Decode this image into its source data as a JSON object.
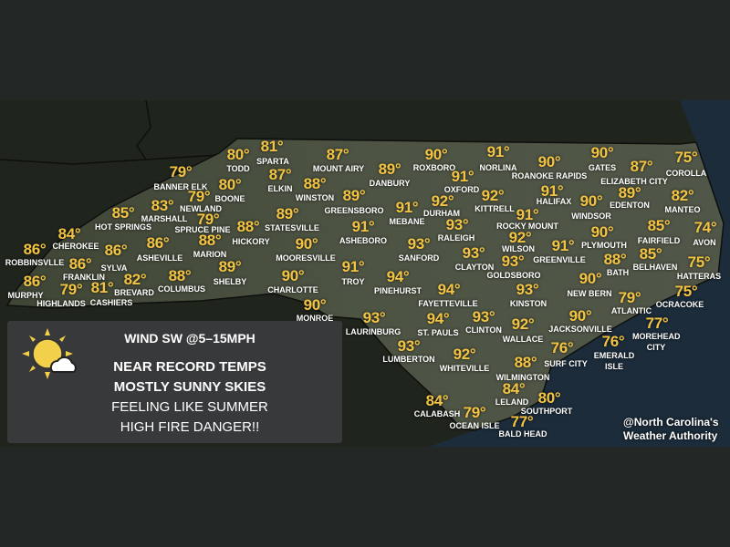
{
  "info_box": {
    "icon": "partly-sunny-icon",
    "wind": "WIND SW @5–15MPH",
    "lines": [
      "NEAR RECORD TEMPS",
      "MOSTLY SUNNY SKIES",
      "FEELING LIKE SUMMER",
      "HIGH FIRE DANGER!!"
    ]
  },
  "credit": [
    "@North Carolina's",
    "Weather Authority"
  ],
  "colors": {
    "temp": "#f3c443",
    "label": "#ffffff",
    "ocean": "#1c2c3b",
    "land": "#4a5141"
  },
  "cities": [
    {
      "name": "TODD",
      "temp": "80°"
    },
    {
      "name": "SPARTA",
      "temp": "81°"
    },
    {
      "name": "BANNER ELK",
      "temp": "79°"
    },
    {
      "name": "BOONE",
      "temp": "80°"
    },
    {
      "name": "NEWLAND",
      "temp": "79°"
    },
    {
      "name": "MARSHALL",
      "temp": "83°"
    },
    {
      "name": "HOT SPRINGS",
      "temp": "85°"
    },
    {
      "name": "SPRUCE PINE",
      "temp": "79°"
    },
    {
      "name": "HICKORY",
      "temp": "88°"
    },
    {
      "name": "CHEROKEE",
      "temp": "84°"
    },
    {
      "name": "ASHEVILLE",
      "temp": "86°"
    },
    {
      "name": "MARION",
      "temp": "88°"
    },
    {
      "name": "ROBBINSVLLE",
      "temp": "86°"
    },
    {
      "name": "SYLVA",
      "temp": "86°"
    },
    {
      "name": "FRANKLIN",
      "temp": "86°"
    },
    {
      "name": "SHELBY",
      "temp": "89°"
    },
    {
      "name": "COLUMBUS",
      "temp": "88°"
    },
    {
      "name": "BREVARD",
      "temp": "82°"
    },
    {
      "name": "MURPHY",
      "temp": "86°"
    },
    {
      "name": "HIGHLANDS",
      "temp": "79°"
    },
    {
      "name": "CASHIERS",
      "temp": "81°"
    },
    {
      "name": "MOUNT AIRY",
      "temp": "87°"
    },
    {
      "name": "ELKIN",
      "temp": "87°"
    },
    {
      "name": "WINSTON",
      "temp": "88°"
    },
    {
      "name": "DANBURY",
      "temp": "89°"
    },
    {
      "name": "ROXBORO",
      "temp": "90°"
    },
    {
      "name": "OXFORD",
      "temp": "91°"
    },
    {
      "name": "GREENSBORO",
      "temp": "89°"
    },
    {
      "name": "MEBANE",
      "temp": "91°"
    },
    {
      "name": "DURHAM",
      "temp": "92°"
    },
    {
      "name": "STATESVILLE",
      "temp": "89°"
    },
    {
      "name": "ASHEBORO",
      "temp": "91°"
    },
    {
      "name": "RALEIGH",
      "temp": "93°"
    },
    {
      "name": "MOORESVILLE",
      "temp": "90°"
    },
    {
      "name": "SANFORD",
      "temp": "93°"
    },
    {
      "name": "CLAYTON",
      "temp": "93°"
    },
    {
      "name": "TROY",
      "temp": "91°"
    },
    {
      "name": "CHARLOTTE",
      "temp": "90°"
    },
    {
      "name": "PINEHURST",
      "temp": "94°"
    },
    {
      "name": "FAYETTEVILLE",
      "temp": "94°"
    },
    {
      "name": "MONROE",
      "temp": "90°"
    },
    {
      "name": "LAURINBURG",
      "temp": "93°"
    },
    {
      "name": "ST. PAULS",
      "temp": "94°"
    },
    {
      "name": "LUMBERTON",
      "temp": "93°"
    },
    {
      "name": "WHITEVILLE",
      "temp": "92°"
    },
    {
      "name": "CALABASH",
      "temp": "84°"
    },
    {
      "name": "OCEAN ISLE",
      "temp": "79°"
    },
    {
      "name": "CLINTON",
      "temp": "93°"
    },
    {
      "name": "WALLACE",
      "temp": "92°"
    },
    {
      "name": "GOLDSBORO",
      "temp": "93°"
    },
    {
      "name": "KINSTON",
      "temp": "93°"
    },
    {
      "name": "WILSON",
      "temp": "92°"
    },
    {
      "name": "ROCKY MOUNT",
      "temp": "91°"
    },
    {
      "name": "KITTRELL",
      "temp": "92°"
    },
    {
      "name": "NORLINA",
      "temp": "91°"
    },
    {
      "name": "ROANOKE RAPIDS",
      "temp": "90°"
    },
    {
      "name": "GATES",
      "temp": "90°"
    },
    {
      "name": "ELIZABETH CITY",
      "temp": "87°"
    },
    {
      "name": "COROLLA",
      "temp": "75°"
    },
    {
      "name": "HALIFAX",
      "temp": "91°"
    },
    {
      "name": "EDENTON",
      "temp": "89°"
    },
    {
      "name": "WINDSOR",
      "temp": "90°"
    },
    {
      "name": "MANTEO",
      "temp": "82°"
    },
    {
      "name": "FAIRFIELD",
      "temp": "85°"
    },
    {
      "name": "AVON",
      "temp": "74°"
    },
    {
      "name": "PLYMOUTH",
      "temp": "90°"
    },
    {
      "name": "GREENVILLE",
      "temp": "91°"
    },
    {
      "name": "BATH",
      "temp": "88°"
    },
    {
      "name": "BELHAVEN",
      "temp": "85°"
    },
    {
      "name": "HATTERAS",
      "temp": "75°"
    },
    {
      "name": "NEW BERN",
      "temp": "90°"
    },
    {
      "name": "ATLANTIC",
      "temp": "79°"
    },
    {
      "name": "OCRACOKE",
      "temp": "75°"
    },
    {
      "name": "JACKSONVILLE",
      "temp": "90°"
    },
    {
      "name": "MOREHEAD CITY",
      "temp": "77°"
    },
    {
      "name": "EMERALD ISLE",
      "temp": "76°"
    },
    {
      "name": "SURF CITY",
      "temp": "76°"
    },
    {
      "name": "WILMINGTON",
      "temp": "88°"
    },
    {
      "name": "LELAND",
      "temp": "84°"
    },
    {
      "name": "SOUTHPORT",
      "temp": "80°"
    },
    {
      "name": "BALD HEAD",
      "temp": "77°"
    }
  ]
}
